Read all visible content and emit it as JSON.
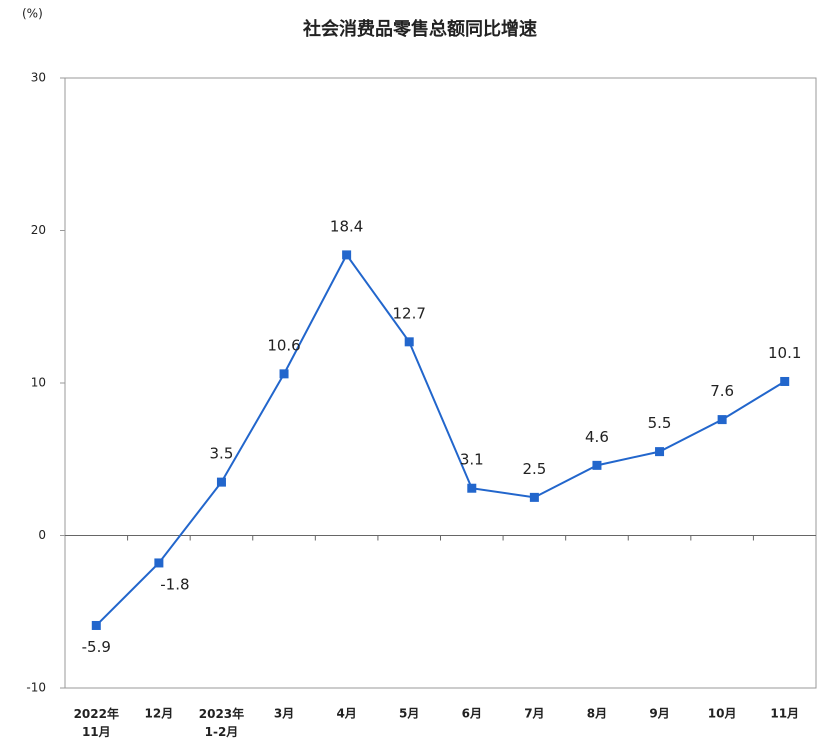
{
  "chart_data": {
    "type": "line",
    "title": "社会消费品零售总额同比增速",
    "y_label": "(%)",
    "categories": [
      "2022年\n11月",
      "12月",
      "2023年\n1-2月",
      "3月",
      "4月",
      "5月",
      "6月",
      "7月",
      "8月",
      "9月",
      "10月",
      "11月"
    ],
    "series": [
      {
        "name": "社会消费品零售总额同比增速",
        "color": "#2266cc",
        "values": [
          -5.9,
          -1.8,
          3.5,
          10.6,
          18.4,
          12.7,
          3.1,
          2.5,
          4.6,
          5.5,
          7.6,
          10.1
        ]
      }
    ],
    "ylim": [
      -10,
      30
    ],
    "yticks": [
      -10,
      0,
      10,
      20,
      30
    ],
    "grid": false
  }
}
